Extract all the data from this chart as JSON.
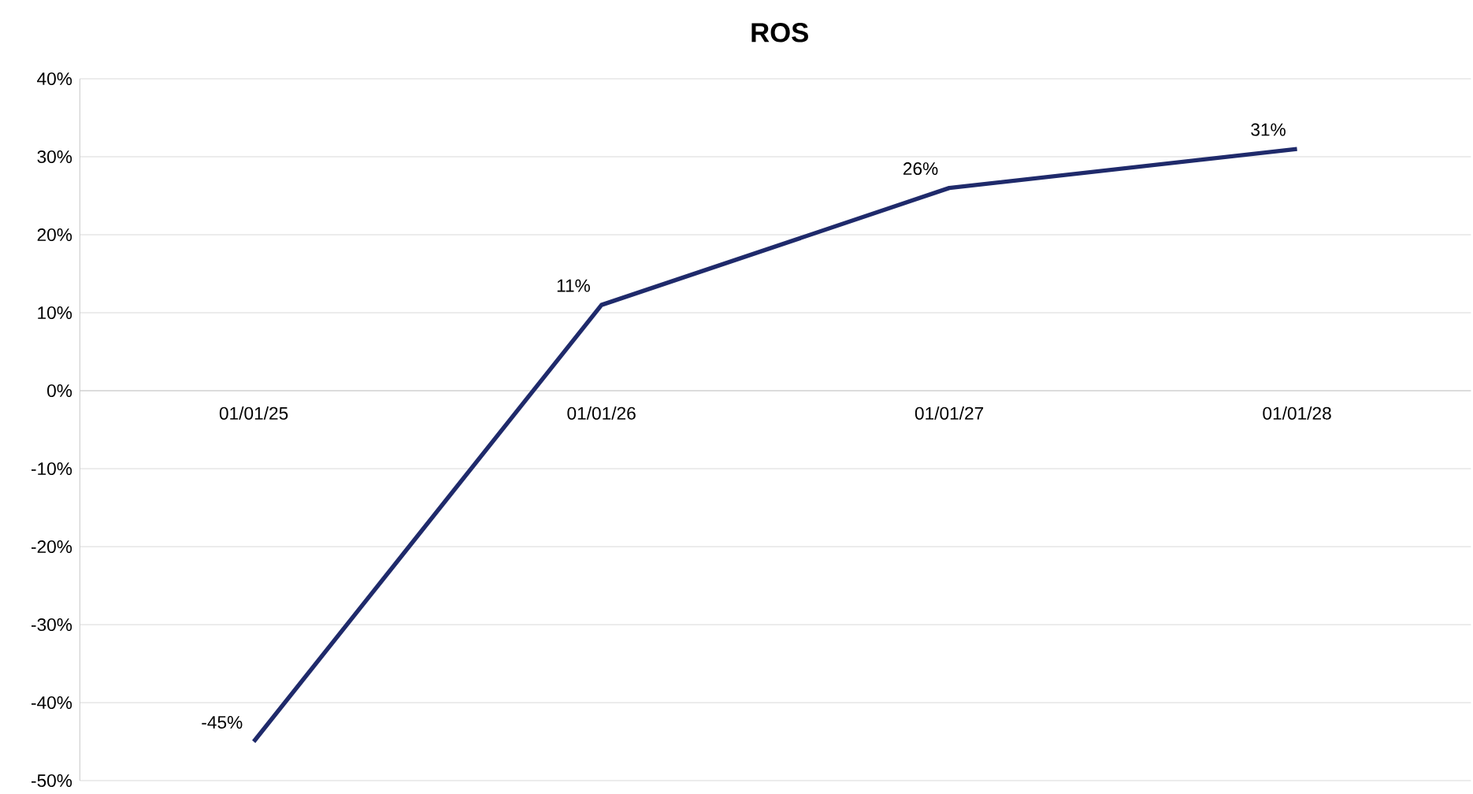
{
  "chart_data": {
    "type": "line",
    "title": "ROS",
    "categories": [
      "01/01/25",
      "01/01/26",
      "01/01/27",
      "01/01/28"
    ],
    "series": [
      {
        "color": "#1f2a6b",
        "values": [
          -45,
          11,
          26,
          31
        ],
        "value_labels": [
          "-45%",
          "11%",
          "26%",
          "31%"
        ]
      }
    ],
    "ylim": [
      -50,
      40
    ],
    "yticks": [
      {
        "value": -50,
        "label": "-50%"
      },
      {
        "value": -40,
        "label": "-40%"
      },
      {
        "value": -30,
        "label": "-30%"
      },
      {
        "value": -20,
        "label": "-20%"
      },
      {
        "value": -10,
        "label": "-10%"
      },
      {
        "value": 0,
        "label": "0%"
      },
      {
        "value": 10,
        "label": "10%"
      },
      {
        "value": 20,
        "label": "20%"
      },
      {
        "value": 30,
        "label": "30%"
      },
      {
        "value": 40,
        "label": "40%"
      }
    ],
    "grid": "y",
    "marker": "none",
    "line_style": "solid"
  }
}
